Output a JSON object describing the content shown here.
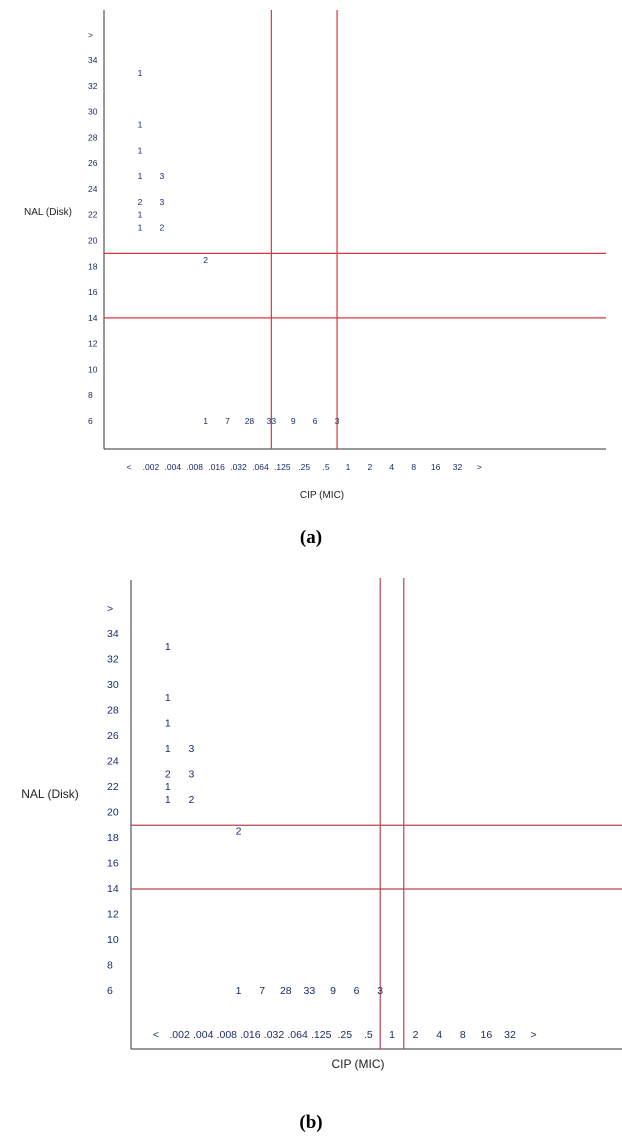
{
  "chart_data": [
    {
      "type": "table",
      "ylabel": "NAL (Disk)",
      "xlabel": "CIP (MIC)",
      "caption": "(a)",
      "y_ticks": [
        ">",
        "34",
        "32",
        "30",
        "28",
        "26",
        "24",
        "22",
        "20",
        "18",
        "16",
        "14",
        "12",
        "10",
        "8",
        "6"
      ],
      "x_ticks": [
        "<",
        ".002",
        ".004",
        ".008",
        ".016",
        ".032",
        ".064",
        ".125",
        ".25",
        ".5",
        "1",
        "2",
        "4",
        "8",
        "16",
        "32",
        ">"
      ],
      "cells": [
        {
          "x": "<",
          "y": 33,
          "count": "1"
        },
        {
          "x": "<",
          "y": 29,
          "count": "1"
        },
        {
          "x": "<",
          "y": 27,
          "count": "1"
        },
        {
          "x": "<",
          "y": 25,
          "count": "1"
        },
        {
          "x": "<",
          "y": 23,
          "count": "2"
        },
        {
          "x": "<",
          "y": 22,
          "count": "1"
        },
        {
          "x": "<",
          "y": 21,
          "count": "1"
        },
        {
          "x": ".002",
          "y": 25,
          "count": "3"
        },
        {
          "x": ".002",
          "y": 23,
          "count": "3"
        },
        {
          "x": ".002",
          "y": 21,
          "count": "2"
        },
        {
          "x": ".008",
          "y": 18.5,
          "count": "2"
        },
        {
          "x": ".008",
          "y": 6,
          "count": "1"
        },
        {
          "x": ".016",
          "y": 6,
          "count": "7"
        },
        {
          "x": ".032",
          "y": 6,
          "count": "28"
        },
        {
          "x": ".064",
          "y": 6,
          "count": "33"
        },
        {
          "x": ".125",
          "y": 6,
          "count": "9"
        },
        {
          "x": ".25",
          "y": 6,
          "count": "6"
        },
        {
          "x": ".5",
          "y": 6,
          "count": "3"
        }
      ],
      "breakpoints_x": [
        ".064",
        ".5"
      ],
      "breakpoints_y": [
        19,
        14
      ],
      "line_color": "#d9383a"
    },
    {
      "type": "table",
      "ylabel": "NAL (Disk)",
      "xlabel": "CIP (MIC)",
      "caption": "(b)",
      "y_ticks": [
        ">",
        "34",
        "32",
        "30",
        "28",
        "26",
        "24",
        "22",
        "20",
        "18",
        "16",
        "14",
        "12",
        "10",
        "8",
        "6"
      ],
      "x_ticks": [
        "<",
        ".002",
        ".004",
        ".008",
        ".016",
        ".032",
        ".064",
        ".125",
        ".25",
        ".5",
        "1",
        "2",
        "4",
        "8",
        "16",
        "32",
        ">"
      ],
      "cells": [
        {
          "x": "<",
          "y": 33,
          "count": "1"
        },
        {
          "x": "<",
          "y": 29,
          "count": "1"
        },
        {
          "x": "<",
          "y": 27,
          "count": "1"
        },
        {
          "x": "<",
          "y": 25,
          "count": "1"
        },
        {
          "x": "<",
          "y": 23,
          "count": "2"
        },
        {
          "x": "<",
          "y": 22,
          "count": "1"
        },
        {
          "x": "<",
          "y": 21,
          "count": "1"
        },
        {
          "x": ".002",
          "y": 25,
          "count": "3"
        },
        {
          "x": ".002",
          "y": 23,
          "count": "3"
        },
        {
          "x": ".002",
          "y": 21,
          "count": "2"
        },
        {
          "x": ".008",
          "y": 18.5,
          "count": "2"
        },
        {
          "x": ".008",
          "y": 6,
          "count": "1"
        },
        {
          "x": ".016",
          "y": 6,
          "count": "7"
        },
        {
          "x": ".032",
          "y": 6,
          "count": "28"
        },
        {
          "x": ".064",
          "y": 6,
          "count": "33"
        },
        {
          "x": ".125",
          "y": 6,
          "count": "9"
        },
        {
          "x": ".25",
          "y": 6,
          "count": "6"
        },
        {
          "x": ".5",
          "y": 6,
          "count": "3"
        }
      ],
      "breakpoints_x": [
        ".5",
        "1"
      ],
      "breakpoints_y": [
        19,
        14
      ],
      "line_color": "#b5474b"
    }
  ],
  "captions": {
    "a": "(a)",
    "b": "(b)"
  },
  "colors": {
    "count_text": "#1a2a6b",
    "tick_text": "#1a2a6b",
    "axis": "#333333"
  }
}
